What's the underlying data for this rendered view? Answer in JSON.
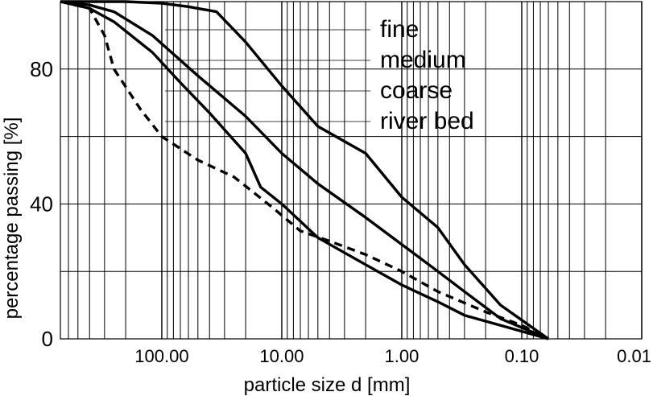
{
  "chart_data": {
    "type": "line",
    "x_scale": "log-reversed",
    "xlim": [
      700,
      0.01
    ],
    "ylim": [
      0,
      100
    ],
    "grid": true,
    "legend_position": "top-center",
    "xlabel": "particle size d [mm]",
    "ylabel": "percentage passing [%]",
    "x_ticks": [
      {
        "value": 100,
        "label": "100.00"
      },
      {
        "value": 10,
        "label": "10.00"
      },
      {
        "value": 1,
        "label": "1.00"
      },
      {
        "value": 0.1,
        "label": "0.10"
      },
      {
        "value": 0.01,
        "label": "0.01"
      }
    ],
    "y_ticks": [
      {
        "value": 0,
        "label": "0"
      },
      {
        "value": 40,
        "label": "40"
      },
      {
        "value": 80,
        "label": "80"
      }
    ],
    "series": [
      {
        "name": "fine",
        "dash": "solid",
        "points": [
          [
            700,
            100
          ],
          [
            200,
            100
          ],
          [
            100,
            99.5
          ],
          [
            60,
            98.5
          ],
          [
            35,
            97
          ],
          [
            20,
            88
          ],
          [
            10,
            75
          ],
          [
            5,
            63
          ],
          [
            2,
            55
          ],
          [
            1,
            42
          ],
          [
            0.5,
            33
          ],
          [
            0.3,
            22
          ],
          [
            0.15,
            10
          ],
          [
            0.06,
            0
          ]
        ]
      },
      {
        "name": "medium",
        "dash": "solid",
        "points": [
          [
            700,
            100
          ],
          [
            400,
            99
          ],
          [
            250,
            97
          ],
          [
            120,
            90
          ],
          [
            50,
            78
          ],
          [
            20,
            66
          ],
          [
            10,
            55
          ],
          [
            5,
            46
          ],
          [
            2,
            36
          ],
          [
            1,
            28
          ],
          [
            0.5,
            20
          ],
          [
            0.3,
            14
          ],
          [
            0.15,
            6
          ],
          [
            0.06,
            0
          ]
        ]
      },
      {
        "name": "coarse",
        "dash": "solid",
        "points": [
          [
            700,
            100
          ],
          [
            400,
            98
          ],
          [
            250,
            94
          ],
          [
            120,
            85
          ],
          [
            70,
            76
          ],
          [
            40,
            67
          ],
          [
            20,
            55
          ],
          [
            15,
            45
          ],
          [
            10,
            40
          ],
          [
            5,
            30
          ],
          [
            2,
            22
          ],
          [
            1,
            16
          ],
          [
            0.5,
            11
          ],
          [
            0.3,
            7
          ],
          [
            0.15,
            4
          ],
          [
            0.06,
            0
          ]
        ]
      },
      {
        "name": "river bed",
        "dash": "dashed",
        "points": [
          [
            700,
            100
          ],
          [
            400,
            98
          ],
          [
            300,
            90
          ],
          [
            250,
            80
          ],
          [
            150,
            68
          ],
          [
            100,
            60
          ],
          [
            50,
            53
          ],
          [
            25,
            48
          ],
          [
            12,
            39
          ],
          [
            7,
            32
          ],
          [
            4,
            29
          ],
          [
            2,
            25
          ],
          [
            1,
            20
          ],
          [
            0.5,
            14
          ],
          [
            0.2,
            8
          ],
          [
            0.1,
            4
          ],
          [
            0.06,
            0
          ]
        ]
      }
    ]
  }
}
